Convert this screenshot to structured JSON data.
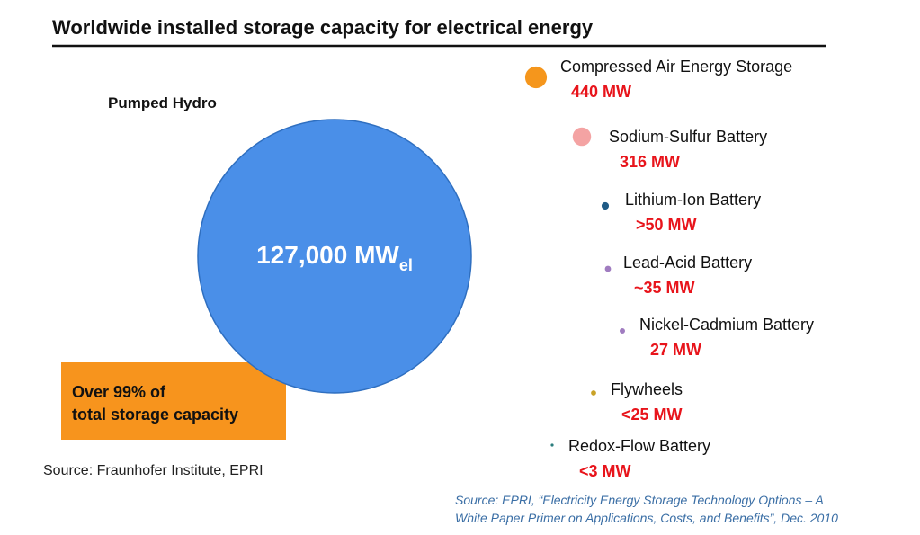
{
  "chart_data": {
    "type": "bubble",
    "title": "Worldwide installed storage capacity for electrical energy",
    "categories": [
      "Pumped Hydro",
      "Compressed Air Energy Storage",
      "Sodium-Sulfur Battery",
      "Lithium-Ion Battery",
      "Lead-Acid Battery",
      "Nickel-Cadmium Battery",
      "Flywheels",
      "Redox-Flow Battery"
    ],
    "values": [
      127000,
      440,
      316,
      50,
      35,
      27,
      25,
      3
    ],
    "value_labels": [
      "127,000 MW",
      "440 MW",
      "316 MW",
      ">50 MW",
      "~35 MW",
      "27 MW",
      "<25 MW",
      "<3 MW"
    ],
    "unit_subscript": "el",
    "colors": [
      "#4a8fe8",
      "#f5961c",
      "#f4a3a3",
      "#1f5b86",
      "#a07cc0",
      "#a07cc0",
      "#c9a227",
      "#2b7d7d"
    ],
    "annotation": [
      "Over 99% of",
      "total storage capacity"
    ],
    "source_left": "Source: Fraunhofer Institute, EPRI",
    "source_right": [
      "Source: EPRI, “Electricity Energy Storage Technology Options – A",
      "White Paper Primer on Applications, Costs, and Benefits”, Dec. 2010"
    ]
  }
}
